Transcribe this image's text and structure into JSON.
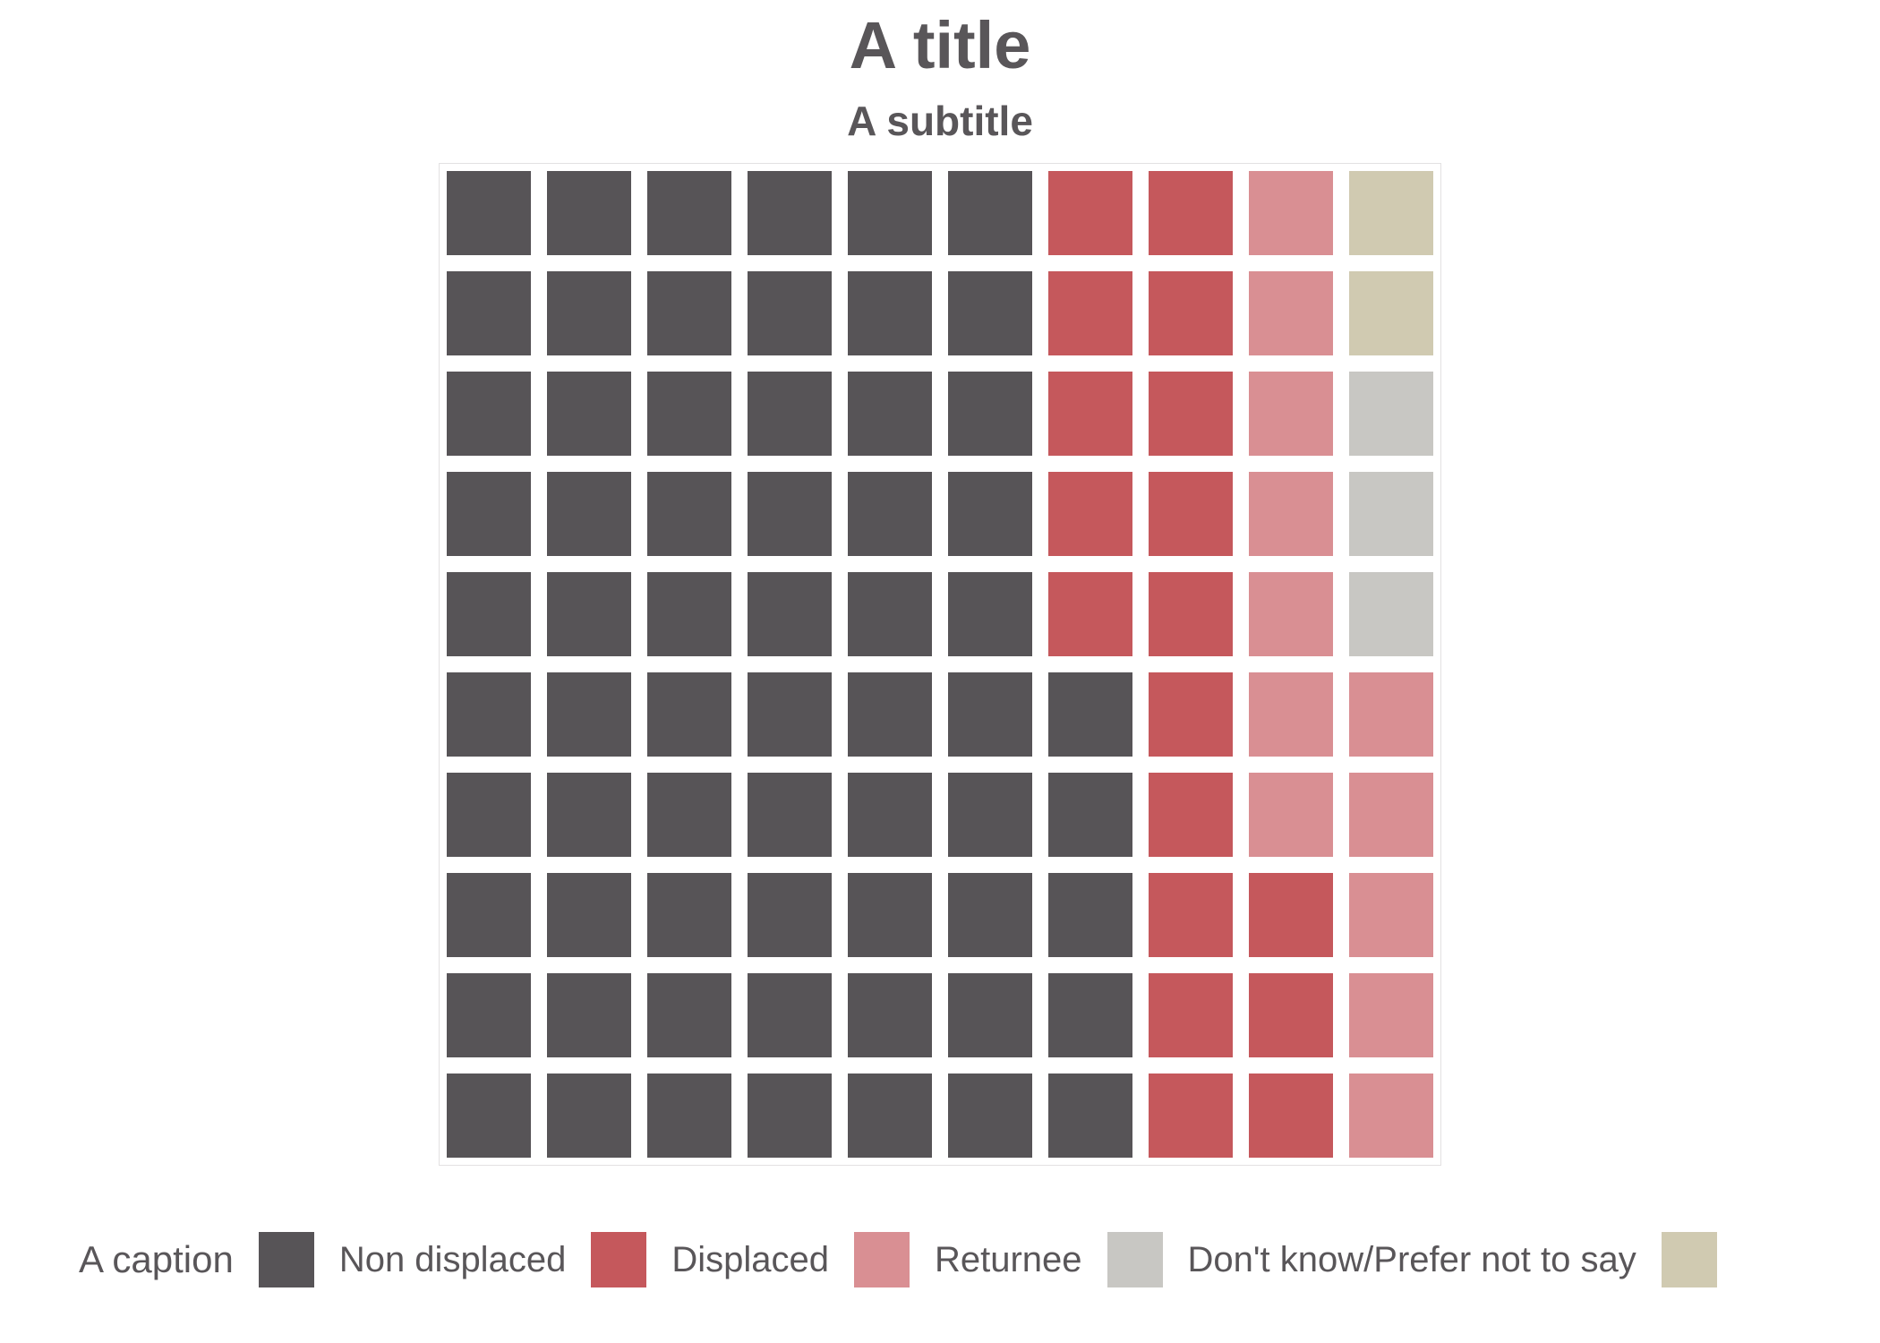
{
  "title": "A title",
  "subtitle": "A subtitle",
  "caption": "A caption",
  "colors": {
    "background": "#ffffff",
    "text": "#595659",
    "panel_border": "#e3e1e2",
    "non_displaced": "#575457",
    "displaced": "#c5585c",
    "returnee": "#d98f93",
    "dont_know": "#c8c7c3",
    "unlabeled": "#d0cab1"
  },
  "chart_data": {
    "type": "waffle",
    "title": "A title",
    "subtitle": "A subtitle",
    "caption": "A caption",
    "rows": 10,
    "cols": 10,
    "total_units": 100,
    "legend_position": "bottom",
    "fill_order": "column-major, bottom-to-top, left-to-right",
    "categories": [
      {
        "label": "Non displaced",
        "color": "#575457",
        "value": 65
      },
      {
        "label": "Displaced",
        "color": "#c5585c",
        "value": 18
      },
      {
        "label": "Returnee",
        "color": "#d98f93",
        "value": 12
      },
      {
        "label": "Don't know/Prefer not to say",
        "color": "#c8c7c3",
        "value": 3
      },
      {
        "label": "",
        "color": "#d0cab1",
        "value": 2
      }
    ],
    "grid": [
      [
        0,
        0,
        0,
        0,
        0,
        0,
        1,
        1,
        2,
        4
      ],
      [
        0,
        0,
        0,
        0,
        0,
        0,
        1,
        1,
        2,
        4
      ],
      [
        0,
        0,
        0,
        0,
        0,
        0,
        1,
        1,
        2,
        3
      ],
      [
        0,
        0,
        0,
        0,
        0,
        0,
        1,
        1,
        2,
        3
      ],
      [
        0,
        0,
        0,
        0,
        0,
        0,
        1,
        1,
        2,
        3
      ],
      [
        0,
        0,
        0,
        0,
        0,
        0,
        0,
        1,
        2,
        2
      ],
      [
        0,
        0,
        0,
        0,
        0,
        0,
        0,
        1,
        2,
        2
      ],
      [
        0,
        0,
        0,
        0,
        0,
        0,
        0,
        1,
        1,
        2
      ],
      [
        0,
        0,
        0,
        0,
        0,
        0,
        0,
        1,
        1,
        2
      ],
      [
        0,
        0,
        0,
        0,
        0,
        0,
        0,
        1,
        1,
        2
      ]
    ]
  }
}
